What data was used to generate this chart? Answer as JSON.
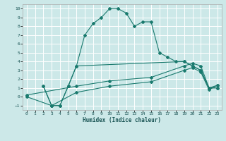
{
  "xlabel": "Humidex (Indice chaleur)",
  "bg_color": "#cce8e8",
  "line_color": "#1a7a6e",
  "grid_color": "#ffffff",
  "xlim": [
    -0.5,
    23.5
  ],
  "ylim": [
    -1.5,
    10.5
  ],
  "xticks": [
    0,
    1,
    2,
    3,
    4,
    5,
    6,
    7,
    8,
    9,
    10,
    11,
    12,
    13,
    14,
    15,
    16,
    17,
    18,
    19,
    20,
    21,
    22,
    23
  ],
  "yticks": [
    -1,
    0,
    1,
    2,
    3,
    4,
    5,
    6,
    7,
    8,
    9,
    10
  ],
  "series": [
    {
      "x": [
        2,
        3,
        4,
        5,
        6,
        7,
        8,
        9,
        10,
        11,
        12,
        13,
        14,
        15,
        16,
        17,
        18,
        19,
        20,
        21,
        22,
        23
      ],
      "y": [
        1.2,
        -1,
        -1,
        1.2,
        3.5,
        7.0,
        8.3,
        9.0,
        10.0,
        10.0,
        9.5,
        8.0,
        8.5,
        8.5,
        5.0,
        4.5,
        4.0,
        4.0,
        3.5,
        3.0,
        1.0,
        1.0
      ]
    },
    {
      "x": [
        2,
        3,
        4,
        5,
        6,
        19,
        20,
        21,
        22,
        23
      ],
      "y": [
        1.2,
        -1,
        -1,
        1.2,
        3.5,
        4.0,
        3.5,
        3.0,
        1.0,
        1.0
      ]
    },
    {
      "x": [
        0,
        6,
        10,
        15,
        19,
        20,
        21,
        22,
        23
      ],
      "y": [
        0.2,
        1.2,
        1.8,
        2.2,
        3.5,
        3.8,
        3.5,
        1.0,
        1.3
      ]
    },
    {
      "x": [
        0,
        3,
        6,
        10,
        15,
        19,
        20,
        21,
        22,
        23
      ],
      "y": [
        0.0,
        -1.0,
        0.5,
        1.2,
        1.7,
        3.0,
        3.3,
        2.8,
        0.8,
        1.3
      ]
    }
  ]
}
